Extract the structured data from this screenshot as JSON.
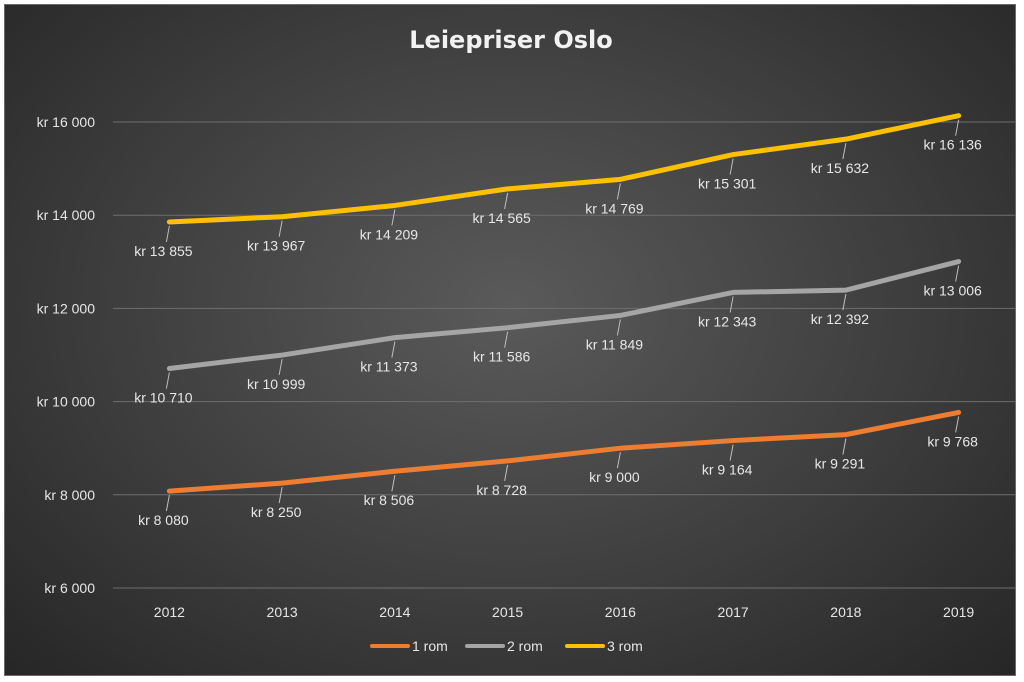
{
  "chart_data": {
    "type": "line",
    "title": "Leiepriser Oslo",
    "xlabel": "",
    "ylabel": "",
    "categories": [
      "2012",
      "2013",
      "2014",
      "2015",
      "2016",
      "2017",
      "2018",
      "2019"
    ],
    "ylim": [
      6000,
      16000
    ],
    "y_ticks": [
      6000,
      8000,
      10000,
      12000,
      14000,
      16000
    ],
    "y_tick_labels": [
      "kr 6 000",
      "kr 8 000",
      "kr 10 000",
      "kr 12 000",
      "kr 14 000",
      "kr 16 000"
    ],
    "grid": true,
    "legend_position": "bottom",
    "series": [
      {
        "name": "1 rom",
        "color": "#ED7D31",
        "values": [
          8080,
          8250,
          8506,
          8728,
          9000,
          9164,
          9291,
          9768
        ],
        "labels": [
          "kr 8 080",
          "kr 8 250",
          "kr 8 506",
          "kr 8 728",
          "kr 9 000",
          "kr 9 164",
          "kr 9 291",
          "kr 9 768"
        ]
      },
      {
        "name": "2 rom",
        "color": "#A5A5A5",
        "values": [
          10710,
          10999,
          11373,
          11586,
          11849,
          12343,
          12392,
          13006
        ],
        "labels": [
          "kr 10 710",
          "kr 10 999",
          "kr 11 373",
          "kr 11 586",
          "kr 11 849",
          "kr 12 343",
          "kr 12 392",
          "kr 13 006"
        ]
      },
      {
        "name": "3 rom",
        "color": "#FFC000",
        "values": [
          13855,
          13967,
          14209,
          14565,
          14769,
          15301,
          15632,
          16136
        ],
        "labels": [
          "kr 13 855",
          "kr 13 967",
          "kr 14 209",
          "kr 14 565",
          "kr 14 769",
          "kr 15 301",
          "kr 15 632",
          "kr 16 136"
        ]
      }
    ]
  }
}
